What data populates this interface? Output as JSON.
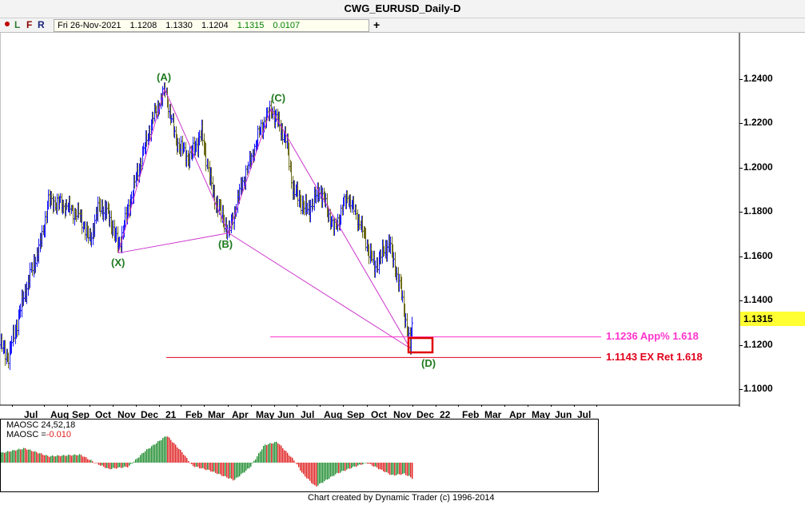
{
  "window": {
    "title": "CWG_EURUSD_Daily-D"
  },
  "toolbar": {
    "buttons": [
      "L",
      "F",
      "R"
    ],
    "ohlc": {
      "date": "Fri 26-Nov-2021",
      "open": "1.1208",
      "high": "1.1330",
      "low": "1.1204",
      "close": "1.1315",
      "change": "0.0107"
    },
    "plus_label": "+"
  },
  "price_axis": {
    "labels": [
      "1.2400",
      "1.2200",
      "1.2000",
      "1.1800",
      "1.1600",
      "1.1400",
      "1.1200",
      "1.1000"
    ],
    "current_price": "1.1315",
    "current_price_color": "#ffff33"
  },
  "time_axis": {
    "labels": [
      "Jul",
      "Aug",
      "Sep",
      "Oct",
      "Nov",
      "Dec",
      "21",
      "Feb",
      "Mar",
      "Apr",
      "May",
      "Jun",
      "Jul",
      "Aug",
      "Sep",
      "Oct",
      "Nov",
      "Dec",
      "22",
      "Feb",
      "Mar",
      "Apr",
      "May",
      "Jun",
      "Jul"
    ]
  },
  "waves": {
    "X": {
      "label": "(X)",
      "price": 1.1615
    },
    "A": {
      "label": "(A)",
      "price": 1.2355
    },
    "B": {
      "label": "(B)",
      "price": 1.1705
    },
    "C": {
      "label": "(C)",
      "price": 1.2265
    },
    "D": {
      "label": "(D)",
      "price": 1.1185
    }
  },
  "levels": [
    {
      "text": "1.1236 App% 1.618",
      "price": 1.1236,
      "color": "#ff33cc"
    },
    {
      "text": "1.1143 EX Ret 1.618",
      "price": 1.1143,
      "color": "#e0001b"
    }
  ],
  "colors": {
    "pattern_line": "#cc33cc",
    "wave_label": "#1f7a1f",
    "bar_up": "#1a1aff",
    "bar_down": "#6b6b1a",
    "osc_pos": "#1e8c2e",
    "osc_neg": "#e02020",
    "target_box": "#e00000"
  },
  "oscillator": {
    "name": "MAOSC 24,52,18",
    "value_label": "MAOSC =",
    "value": "-0.010"
  },
  "footer": "Chart created by Dynamic Trader  (c) 1996-2014",
  "chart_data": {
    "type": "line",
    "title": "CWG_EURUSD_Daily-D",
    "ylim": [
      1.1,
      1.24
    ],
    "series": [
      {
        "x": [
          "Jun 2020",
          "Jul 2020",
          "Aug 2020",
          "Sep 2020",
          "Oct 2020",
          "Nov 2020",
          "Dec 2020",
          "Jan 2021",
          "Feb 2021",
          "Mar 2021",
          "Apr 2021",
          "May 2021",
          "Jun 2021",
          "Jul 2021",
          "Aug 2021",
          "Sep 2021",
          "Oct 2021",
          "Nov 2021"
        ],
        "values": [
          1.12,
          1.175,
          1.185,
          1.175,
          1.165,
          1.175,
          1.225,
          1.22,
          1.21,
          1.175,
          1.19,
          1.22,
          1.205,
          1.18,
          1.172,
          1.178,
          1.16,
          1.1315
        ]
      }
    ]
  }
}
